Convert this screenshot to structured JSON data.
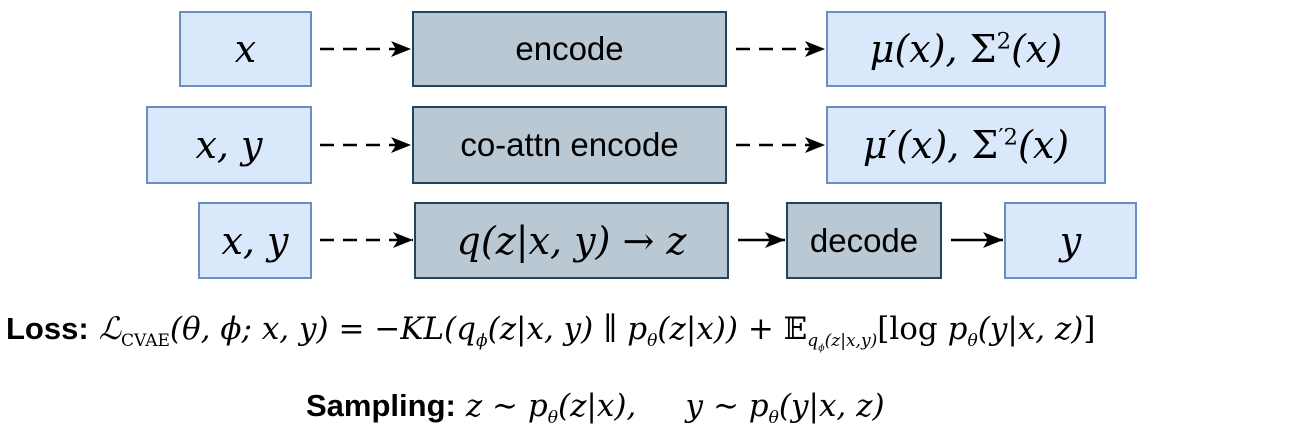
{
  "rows": [
    {
      "input": "x",
      "process": "encode",
      "output": "μ(x), Σ²(x)"
    },
    {
      "input": "x, y",
      "process": "co-attn encode",
      "output": "μ′(x), Σ′²(x)"
    },
    {
      "input": "x, y",
      "process": "q(z|x, y) → z",
      "decoder": "decode",
      "output": "y"
    }
  ],
  "equations": {
    "loss_label": "Loss:",
    "loss_formula": "ℒ_CVAE(θ, ϕ; x, y) = −KL(q_ϕ(z|x, y) ∥ p_θ(z|x)) + 𝔼_{q_ϕ(z|x,y)}[log p_θ(y|x, z)]",
    "sampling_label": "Sampling:",
    "sampling_formula": "z ∼ p_θ(z|x),     y ∼ p_θ(y|x, z)"
  },
  "colors": {
    "input_fill": "#dae8fc",
    "input_border": "#6c8ebf",
    "process_fill": "#bac8d3",
    "process_border": "#23445d"
  }
}
